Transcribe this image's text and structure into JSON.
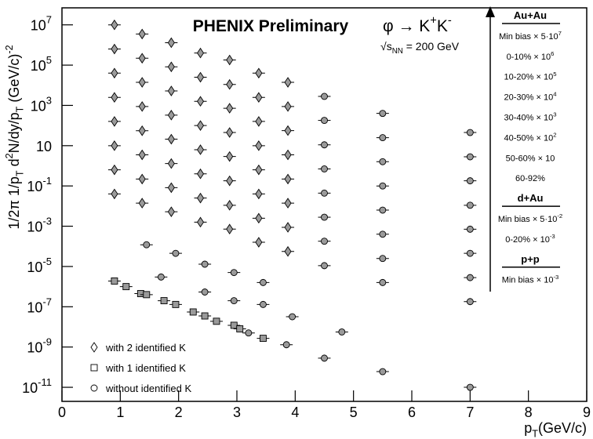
{
  "chart_data": {
    "type": "scatter",
    "title": "PHENIX Preliminary",
    "title_color": "#ff0000",
    "decay": [
      {
        "text": "φ → K"
      },
      {
        "text": "+",
        "shift": "sup"
      },
      {
        "text": "K"
      },
      {
        "text": "-",
        "shift": "sup"
      }
    ],
    "energy": [
      {
        "text": "√"
      },
      {
        "text": "s"
      },
      {
        "text": "NN",
        "shift": "sub"
      },
      {
        "text": " = 200 GeV"
      }
    ],
    "ylabel": [
      {
        "text": "1/2π  1/p"
      },
      {
        "text": "T",
        "shift": "sub"
      },
      {
        "text": " d"
      },
      {
        "text": "2",
        "shift": "sup"
      },
      {
        "text": "N/dy/p"
      },
      {
        "text": "T",
        "shift": "sub"
      },
      {
        "text": " (GeV/c)"
      },
      {
        "text": "-2",
        "shift": "sup"
      }
    ],
    "xlabel": [
      {
        "text": "p"
      },
      {
        "text": "T",
        "shift": "sub"
      },
      {
        "text": "(GeV/c)"
      }
    ],
    "xlim": [
      0,
      9
    ],
    "ylim": [
      2e-12,
      70000000.0
    ],
    "log_y": true,
    "xticks": [
      0,
      1,
      2,
      3,
      4,
      5,
      6,
      7,
      8,
      9
    ],
    "yticks": [
      {
        "value": 10000000.0,
        "label": "10",
        "sup": "7"
      },
      {
        "value": 100000.0,
        "label": "10",
        "sup": "5"
      },
      {
        "value": 1000,
        "label": "10",
        "sup": "3"
      },
      10,
      {
        "value": 0.1,
        "label": "10",
        "sup": "-1"
      },
      {
        "value": 0.001,
        "label": "10",
        "sup": "-3"
      },
      {
        "value": 1e-05,
        "label": "10",
        "sup": "-5"
      },
      {
        "value": 1e-07,
        "label": "10",
        "sup": "-7"
      },
      {
        "value": 1e-09,
        "label": "10",
        "sup": "-9"
      },
      {
        "value": 1e-11,
        "label": "10",
        "sup": "-11"
      }
    ],
    "legend_position": "lower left",
    "series": [
      {
        "name": "with 2 identified K",
        "marker": "diamond",
        "color": "#9a9a9a",
        "x": [
          0.9,
          1.375,
          1.875,
          2.375,
          2.875,
          3.375,
          3.875,
          0.9,
          1.375,
          1.875,
          2.375,
          2.875,
          3.375,
          3.875,
          0.9,
          1.375,
          1.875,
          2.375,
          2.875,
          3.375,
          3.875,
          0.9,
          1.375,
          1.875,
          2.375,
          2.875,
          3.375,
          3.875,
          0.9,
          1.375,
          1.875,
          2.375,
          2.875,
          3.375,
          3.875,
          0.9,
          1.375,
          1.875,
          2.375,
          2.875,
          3.375,
          3.875,
          0.9,
          1.375,
          1.875,
          2.375,
          2.875,
          3.375,
          3.875,
          0.9,
          1.375,
          1.875,
          2.375,
          2.875,
          3.375,
          3.875
        ],
        "values": [
          10000000.0,
          3500000.0,
          1300000.0,
          400000.0,
          180000.0,
          40000.0,
          14000.0,
          630000.0,
          220000.0,
          82000.0,
          25000.0,
          11000.0,
          2500,
          880,
          40000.0,
          14000.0,
          5200,
          1600,
          720,
          160,
          56,
          2500,
          880,
          330,
          100,
          45,
          10,
          3.5,
          160,
          55,
          21,
          6.3,
          2.9,
          0.63,
          0.22,
          10,
          3.5,
          1.3,
          0.4,
          0.18,
          0.04,
          0.014,
          0.63,
          0.22,
          0.082,
          0.025,
          0.011,
          0.0025,
          0.00088,
          0.04,
          0.014,
          0.0052,
          0.0016,
          0.00072,
          0.00016,
          5.6e-05
        ]
      },
      {
        "name": "with 1 identified K",
        "marker": "square",
        "color": "#9a9a9a",
        "x": [
          0.9,
          1.1,
          1.35,
          1.45,
          1.75,
          1.95,
          2.25,
          2.45,
          2.65,
          2.95,
          3.05,
          3.45
        ],
        "values": [
          1.9e-06,
          1e-06,
          4.5e-07,
          4e-07,
          2e-07,
          1.3e-07,
          5.5e-08,
          3.5e-08,
          1.9e-08,
          1.2e-08,
          8e-09,
          2.7e-09
        ]
      },
      {
        "name": "without identified K",
        "marker": "circle",
        "color": "#9a9a9a",
        "x": [
          4.5,
          5.5,
          7.0,
          4.5,
          5.5,
          7.0,
          4.5,
          5.5,
          7.0,
          4.5,
          5.5,
          7.0,
          4.5,
          5.5,
          7.0,
          4.5,
          5.5,
          7.0,
          4.5,
          5.5,
          7.0,
          4.5,
          5.5,
          7.0,
          1.45,
          1.95,
          2.45,
          2.95,
          3.45,
          1.7,
          2.45,
          2.95,
          3.45,
          3.95,
          4.8,
          3.2,
          3.85,
          4.5,
          5.5,
          7.0
        ],
        "values": [
          2800,
          400,
          45,
          180,
          25,
          2.8,
          11,
          1.6,
          0.18,
          0.7,
          0.1,
          0.011,
          0.044,
          0.0063,
          0.00071,
          0.0028,
          0.0004,
          4.5e-05,
          0.00018,
          2.5e-05,
          2.8e-06,
          1.1e-05,
          1.6e-06,
          1.8e-07,
          0.00012,
          4.5e-05,
          1.3e-05,
          5e-06,
          1.6e-06,
          3e-06,
          5.4e-07,
          2e-07,
          1.3e-07,
          3.2e-08,
          5.6e-09,
          5e-09,
          1.3e-09,
          2.8e-10,
          6e-11,
          1e-11
        ]
      }
    ],
    "panel": [
      {
        "parts": [
          {
            "text": "Au+Au"
          }
        ],
        "header": true
      },
      {
        "parts": [
          {
            "text": "Min bias × 5·10"
          },
          {
            "text": "7",
            "shift": "sup"
          }
        ]
      },
      {
        "parts": [
          {
            "text": "0-10% × 10"
          },
          {
            "text": "6",
            "shift": "sup"
          }
        ]
      },
      {
        "parts": [
          {
            "text": "10-20% × 10"
          },
          {
            "text": "5",
            "shift": "sup"
          }
        ]
      },
      {
        "parts": [
          {
            "text": "20-30% × 10"
          },
          {
            "text": "4",
            "shift": "sup"
          }
        ]
      },
      {
        "parts": [
          {
            "text": "30-40% × 10"
          },
          {
            "text": "3",
            "shift": "sup"
          }
        ]
      },
      {
        "parts": [
          {
            "text": "40-50% × 10"
          },
          {
            "text": "2",
            "shift": "sup"
          }
        ]
      },
      {
        "parts": [
          {
            "text": "50-60% × 10"
          }
        ]
      },
      {
        "parts": [
          {
            "text": "60-92%"
          }
        ]
      },
      {
        "parts": [
          {
            "text": "d+Au"
          }
        ],
        "header": true
      },
      {
        "parts": [
          {
            "text": "Min bias × 5·10"
          },
          {
            "text": "-2",
            "shift": "sup"
          }
        ]
      },
      {
        "parts": [
          {
            "text": "0-20% × 10"
          },
          {
            "text": "-3",
            "shift": "sup"
          }
        ]
      },
      {
        "parts": [
          {
            "text": "p+p"
          }
        ],
        "header": true
      },
      {
        "parts": [
          {
            "text": "Min bias × 10"
          },
          {
            "text": "-3",
            "shift": "sup"
          }
        ]
      }
    ]
  }
}
